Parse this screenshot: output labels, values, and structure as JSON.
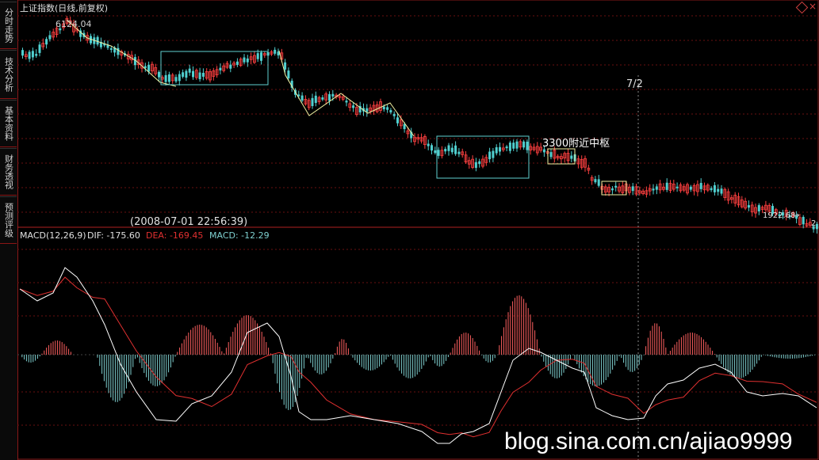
{
  "sidebar": {
    "tabs": [
      {
        "label": "分时走势"
      },
      {
        "label": "技术分析"
      },
      {
        "label": "基本资料"
      },
      {
        "label": "财务透视"
      },
      {
        "label": "预测评级"
      }
    ]
  },
  "header": {
    "title": "上证指数(日线,前复权)"
  },
  "price_panel": {
    "high_label": "6124.04",
    "low_label": "1922.68",
    "right_edge_label": "2",
    "date_marker": "7/2",
    "timestamp": "(2008-07-01  22:56:39)",
    "annotation": "3300附近中枢"
  },
  "macd": {
    "label": "MACD(12,26,9)",
    "dif_label": "DIF: -175.60",
    "dea_label": "DEA: -169.45",
    "macd_label": "MACD: -12.29",
    "colors": {
      "dif": "#ffffff",
      "dea": "#e03030",
      "up": "#ff6060",
      "down": "#7fd0d0"
    }
  },
  "colors": {
    "background": "#000000",
    "up_candle": "#ff4040",
    "down_candle": "#50d0d0",
    "grid": "#8a1a1a",
    "box": "#5fd0d0",
    "trendline": "#f0f0a0"
  },
  "watermark": "blog.sina.com.cn/ajiao9999"
}
